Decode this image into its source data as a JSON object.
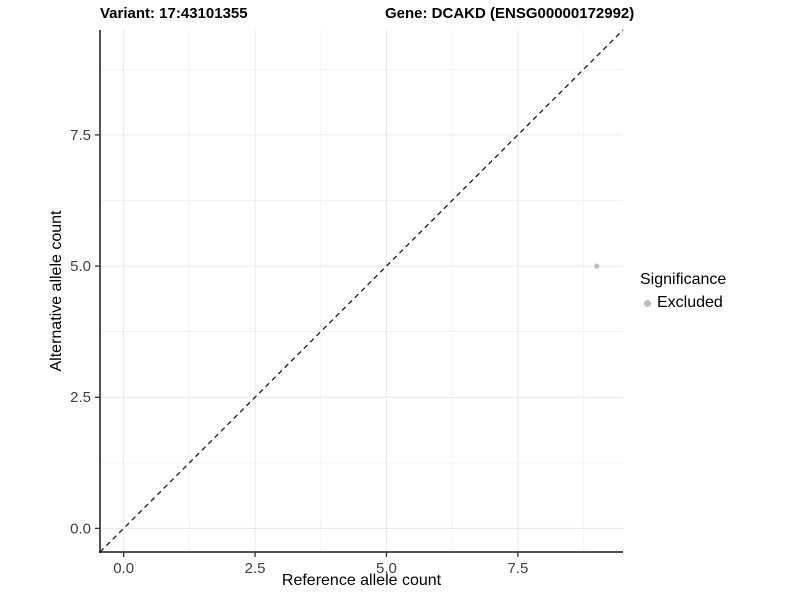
{
  "header": {
    "variant_title": "Variant: 17:43101355",
    "gene_title": "Gene: DCAKD (ENSG00000172992)"
  },
  "chart_data": {
    "type": "scatter",
    "xlabel": "Reference allele count",
    "ylabel": "Alternative allele count",
    "xlim": [
      -0.45,
      9.5
    ],
    "ylim": [
      -0.45,
      9.5
    ],
    "x_ticks": [
      0,
      2.5,
      5,
      7.5
    ],
    "y_ticks": [
      0,
      2.5,
      5,
      7.5
    ],
    "x_minor_ticks": [
      1.25,
      3.75,
      6.25,
      8.75
    ],
    "y_minor_ticks": [
      1.25,
      3.75,
      6.25,
      8.75
    ],
    "tick_decimals": 1,
    "grid": true,
    "points": [
      {
        "x": 9,
        "y": 5,
        "series": "Excluded"
      }
    ],
    "series_colors": {
      "Excluded": "#bebebe"
    },
    "identity_line": {
      "style": "dashed",
      "color": "#1a1a1a",
      "from": [
        -0.45,
        -0.45
      ],
      "to": [
        9.5,
        9.5
      ]
    },
    "legend": {
      "title": "Significance",
      "position": "right",
      "entries": [
        {
          "label": "Excluded",
          "color": "#bebebe"
        }
      ]
    },
    "colors": {
      "major_grid": "#e9e9e9",
      "minor_grid": "#f3f3f3",
      "axis_line": "#1a1a1a",
      "tick_label": "#404040"
    }
  }
}
